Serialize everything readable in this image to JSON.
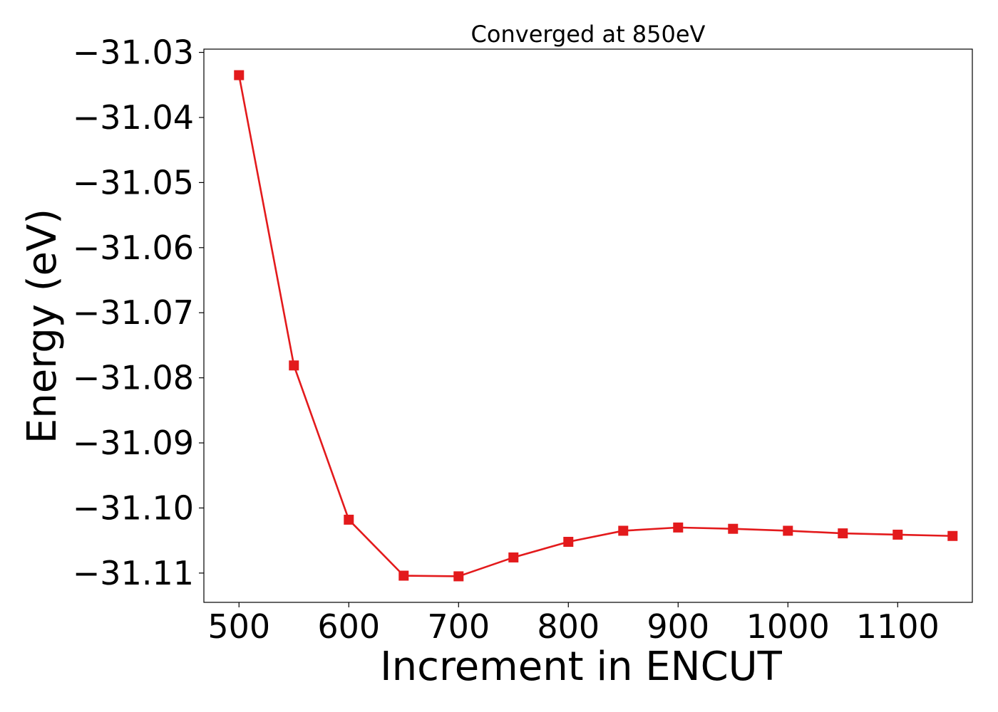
{
  "chart_data": {
    "type": "line",
    "title": "Converged at 850eV",
    "xlabel": "Increment in ENCUT",
    "ylabel": "Energy (eV)",
    "x": [
      500,
      550,
      600,
      650,
      700,
      750,
      800,
      850,
      900,
      950,
      1000,
      1050,
      1100,
      1150
    ],
    "series": [
      {
        "name": "",
        "color": "#e31a1c",
        "marker": "square",
        "values": [
          -31.0335,
          -31.0781,
          -31.1018,
          -31.1104,
          -31.1105,
          -31.1076,
          -31.1052,
          -31.1035,
          -31.103,
          -31.1032,
          -31.1035,
          -31.1039,
          -31.1041,
          -31.1043
        ]
      }
    ],
    "xlim": [
      468,
      1168
    ],
    "ylim": [
      -31.1145,
      -31.0295
    ],
    "xticks": [
      500,
      600,
      700,
      800,
      900,
      1000,
      1100
    ],
    "xtick_labels": [
      "500",
      "600",
      "700",
      "800",
      "900",
      "1000",
      "1100"
    ],
    "yticks": [
      -31.03,
      -31.04,
      -31.05,
      -31.06,
      -31.07,
      -31.08,
      -31.09,
      -31.1,
      -31.11
    ],
    "ytick_labels": [
      "−31.03",
      "−31.04",
      "−31.05",
      "−31.06",
      "−31.07",
      "−31.08",
      "−31.09",
      "−31.10",
      "−31.11"
    ],
    "grid": false,
    "legend": "none"
  }
}
